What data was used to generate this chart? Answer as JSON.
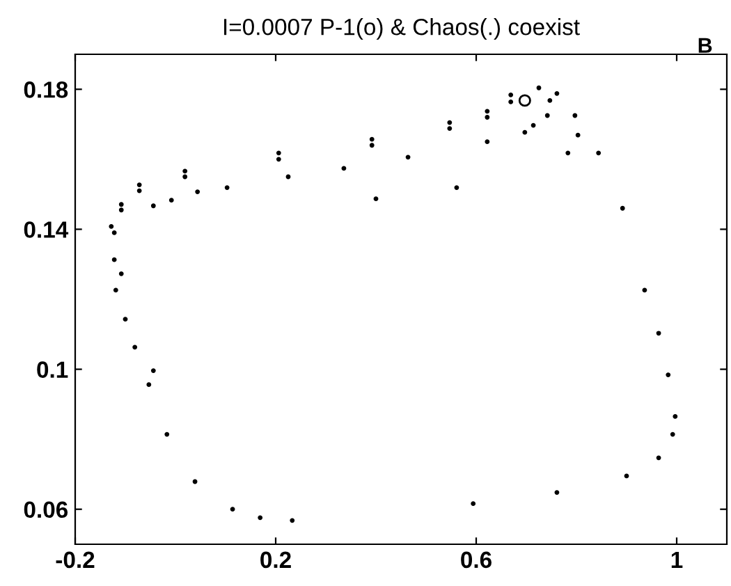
{
  "chart_data": {
    "type": "scatter",
    "title": "I=0.0007 P-1(o) & Chaos(.) coexist",
    "annotations": [
      "B"
    ],
    "xlim": [
      -0.2,
      1.1
    ],
    "ylim": [
      0.05,
      0.19
    ],
    "xticks": [
      -0.2,
      0.2,
      0.6,
      1
    ],
    "yticks": [
      0.06,
      0.1,
      0.14,
      0.18
    ],
    "grid": false,
    "legend": false,
    "marker": "circle",
    "series": [
      {
        "color": "#000000",
        "x": [
          0.233,
          0.594,
          0.761,
          0.9,
          0.964,
          0.992,
          0.997,
          0.983,
          0.964,
          0.936,
          0.892,
          0.844,
          0.797,
          0.761,
          0.725,
          0.669,
          0.622,
          0.547,
          0.392,
          0.206,
          0.019,
          -0.072,
          -0.108,
          -0.128,
          -0.122,
          -0.119,
          -0.1,
          -0.081,
          -0.053,
          -0.017,
          0.039,
          0.114,
          0.169,
          0.714,
          0.742,
          0.747,
          0.669,
          0.622,
          0.547,
          0.392,
          0.206,
          0.019,
          -0.072,
          -0.108,
          -0.122,
          0.4,
          0.561,
          0.783,
          0.697,
          0.622,
          0.464,
          0.336,
          0.225,
          0.103,
          0.044,
          -0.008,
          -0.044,
          -0.108,
          0.803,
          -0.044
        ],
        "values": [
          0.0568,
          0.0616,
          0.0648,
          0.0695,
          0.0747,
          0.0814,
          0.0865,
          0.0984,
          0.1103,
          0.1226,
          0.146,
          0.1618,
          0.1725,
          0.1788,
          0.1804,
          0.1784,
          0.1737,
          0.1705,
          0.1657,
          0.1618,
          0.1566,
          0.1527,
          0.1471,
          0.1408,
          0.1313,
          0.1226,
          0.1143,
          0.1063,
          0.0956,
          0.0814,
          0.0679,
          0.06,
          0.0576,
          0.1697,
          0.1725,
          0.1768,
          0.1764,
          0.172,
          0.1688,
          0.164,
          0.16,
          0.155,
          0.151,
          0.1455,
          0.139,
          0.1487,
          0.1519,
          0.1618,
          0.1677,
          0.165,
          0.1606,
          0.1574,
          0.155,
          0.1519,
          0.1507,
          0.1483,
          0.1467,
          0.1273,
          0.1669,
          0.0996
        ]
      },
      {
        "color": "#000000",
        "x": [
          0.697
        ],
        "values": [
          0.1768
        ]
      }
    ]
  }
}
